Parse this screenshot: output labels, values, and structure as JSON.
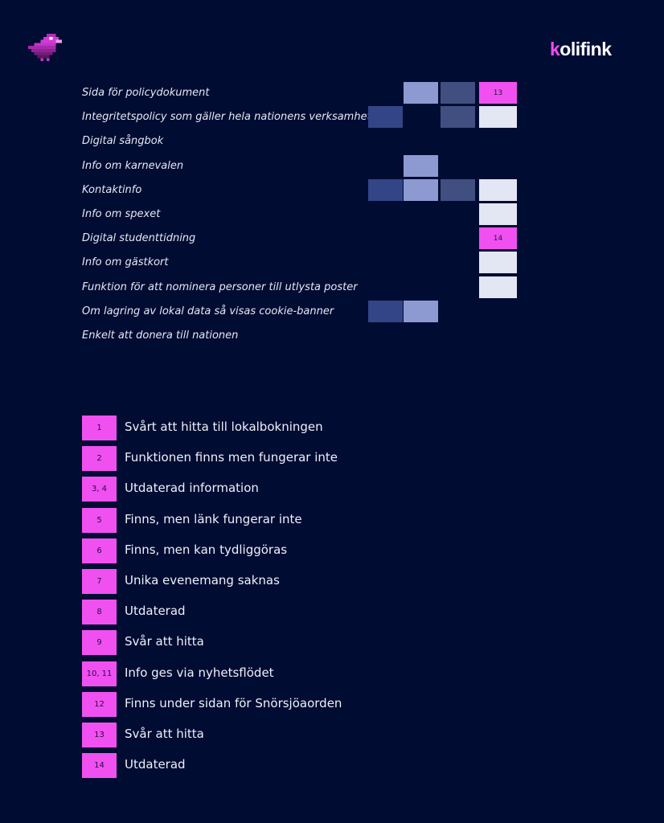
{
  "brand": {
    "logo_prefix": "k",
    "logo_rest": "olifink"
  },
  "colors": {
    "background": "#010c33",
    "dark": "#334587",
    "light": "#8d9ad1",
    "mid": "#414f80",
    "pale": "#e3e6f3",
    "highlight": "#f050f0"
  },
  "chart_data": {
    "type": "heatmap",
    "rows": [
      "Sida för policydokument",
      "Integritetspolicy som gäller hela nationens verksamhet",
      "Digital sångbok",
      "Info om karnevalen",
      "Kontaktinfo",
      "Info om spexet",
      "Digital studenttidning",
      "Info om gästkort",
      "Funktion för att nominera personer till utlysta poster",
      "Om lagring av lokal data så visas cookie-banner",
      "Enkelt att donera till nationen"
    ],
    "columns": 4,
    "cells": [
      [
        null,
        "light",
        "mid",
        "highlight"
      ],
      [
        "dark",
        null,
        "mid",
        "pale"
      ],
      [
        null,
        null,
        null,
        null
      ],
      [
        null,
        "light",
        null,
        null
      ],
      [
        "dark",
        "light",
        "mid",
        "pale"
      ],
      [
        null,
        null,
        null,
        "pale"
      ],
      [
        null,
        null,
        null,
        "highlight"
      ],
      [
        null,
        null,
        null,
        "pale"
      ],
      [
        null,
        null,
        null,
        "pale"
      ],
      [
        "dark",
        "light",
        null,
        null
      ],
      [
        null,
        null,
        null,
        null
      ]
    ],
    "cell_labels": [
      [
        null,
        null,
        null,
        "13"
      ],
      [
        null,
        null,
        null,
        null
      ],
      [
        null,
        null,
        null,
        null
      ],
      [
        null,
        null,
        null,
        null
      ],
      [
        null,
        null,
        null,
        null
      ],
      [
        null,
        null,
        null,
        null
      ],
      [
        null,
        null,
        null,
        "14"
      ],
      [
        null,
        null,
        null,
        null
      ],
      [
        null,
        null,
        null,
        null
      ],
      [
        null,
        null,
        null,
        null
      ],
      [
        null,
        null,
        null,
        null
      ]
    ],
    "notes": [
      {
        "ref": "1",
        "text": "Svårt att hitta till lokalbokningen"
      },
      {
        "ref": "2",
        "text": "Funktionen finns men fungerar inte"
      },
      {
        "ref": "3, 4",
        "text": "Utdaterad information"
      },
      {
        "ref": "5",
        "text": "Finns, men länk fungerar inte"
      },
      {
        "ref": "6",
        "text": "Finns, men kan tydliggöras"
      },
      {
        "ref": "7",
        "text": "Unika evenemang saknas"
      },
      {
        "ref": "8",
        "text": "Utdaterad"
      },
      {
        "ref": "9",
        "text": "Svår att hitta"
      },
      {
        "ref": "10, 11",
        "text": "Info ges via nyhetsflödet"
      },
      {
        "ref": "12",
        "text": "Finns under sidan för Snörsjöaorden"
      },
      {
        "ref": "13",
        "text": "Svår att hitta"
      },
      {
        "ref": "14",
        "text": "Utdaterad"
      }
    ]
  }
}
